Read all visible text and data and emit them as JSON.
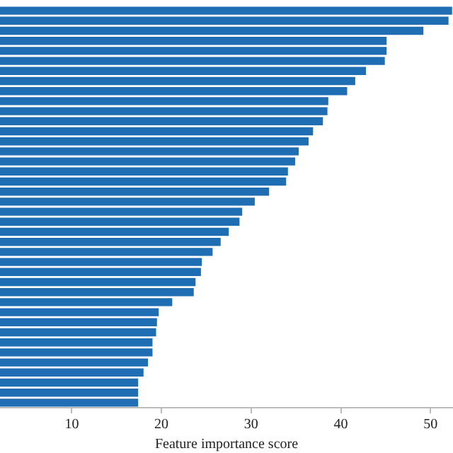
{
  "chart_data": {
    "type": "bar",
    "orientation": "horizontal",
    "xlabel": "Feature importance score",
    "categories": [
      null,
      null,
      null,
      null,
      null,
      null,
      null,
      null,
      null,
      null,
      null,
      null,
      null,
      null,
      null,
      null,
      null,
      null,
      null,
      null,
      null,
      null,
      null,
      null,
      null,
      null,
      null,
      null,
      null,
      null,
      null,
      null,
      null,
      null,
      null,
      null,
      null,
      null,
      null,
      null
    ],
    "values": [
      52.4,
      52.0,
      49.2,
      45.1,
      45.1,
      44.9,
      42.8,
      41.6,
      40.7,
      38.6,
      38.5,
      38.0,
      36.9,
      36.4,
      35.3,
      34.9,
      34.1,
      33.9,
      32.0,
      30.4,
      29.0,
      28.7,
      27.5,
      26.6,
      25.7,
      24.5,
      24.4,
      23.8,
      23.6,
      21.2,
      19.7,
      19.5,
      19.4,
      19.0,
      19.0,
      18.5,
      18.0,
      17.4,
      17.4,
      17.4
    ],
    "color": "#1f6db3",
    "xlim": [
      2,
      52.5
    ],
    "xticks": [
      10,
      20,
      30,
      40,
      50
    ],
    "grid": false,
    "legend": false
  }
}
